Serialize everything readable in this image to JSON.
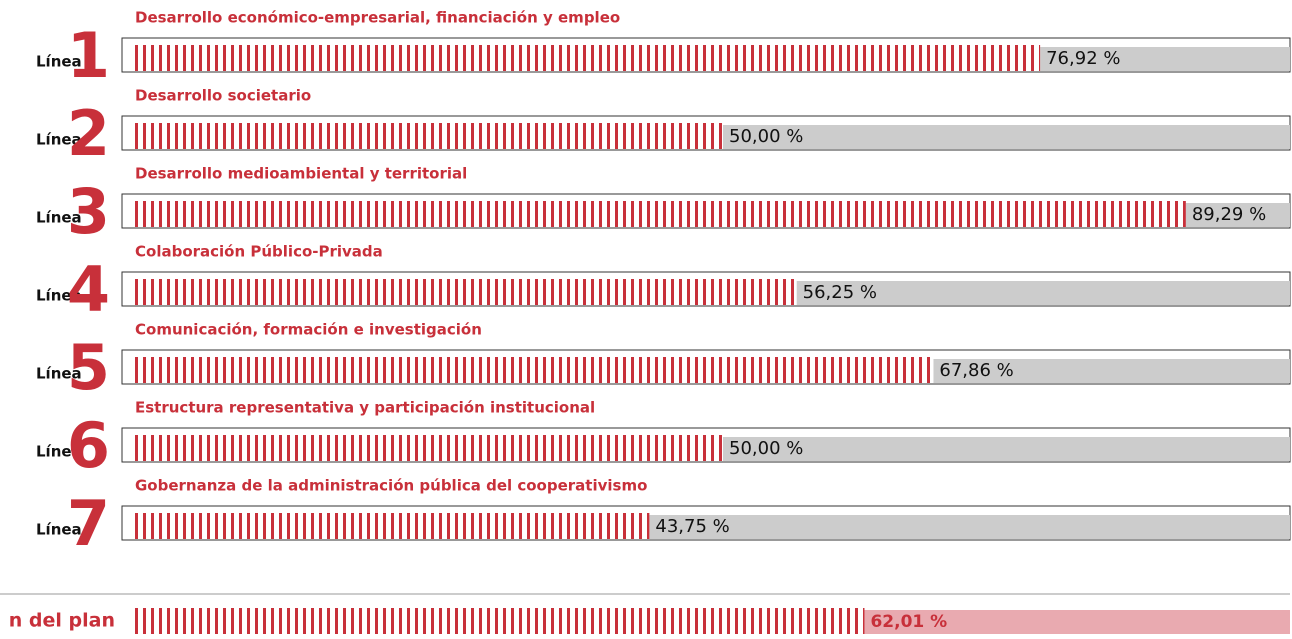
{
  "chart_data": {
    "type": "bar",
    "orientation": "horizontal",
    "line_label": "Línea",
    "line_numbers": [
      1,
      2,
      3,
      4,
      5,
      6,
      7
    ],
    "categories": [
      "Desarrollo económico-empresarial, financiación y empleo",
      "Desarrollo societario",
      "Desarrollo medioambiental y territorial",
      "Colaboración Público-Privada",
      "Comunicación, formación e investigación",
      "Estructura representativa y participación institucional",
      "Gobernanza de la administración pública del cooperativismo"
    ],
    "values": [
      76.92,
      50.0,
      89.29,
      56.25,
      67.86,
      50.0,
      43.75
    ],
    "value_labels": [
      "76,92 %",
      "50,00 %",
      "89,29 %",
      "56,25 %",
      "67,86 %",
      "50,00 %",
      "43,75 %"
    ],
    "color": "#c8303a",
    "xlim": [
      0,
      100
    ],
    "total": {
      "label": "n del plan",
      "value": 62.01,
      "value_label": "62,01 %",
      "color": "#c8303a"
    }
  }
}
